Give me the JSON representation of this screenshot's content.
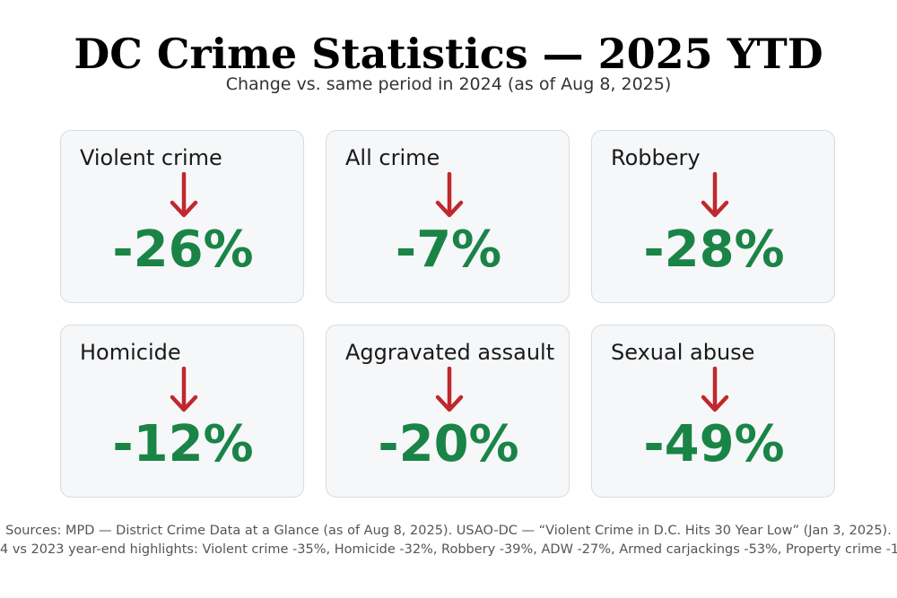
{
  "title": "DC Crime Statistics — 2025 YTD",
  "subtitle": "Change vs. same period in 2024 (as of Aug 8, 2025)",
  "colors": {
    "arrow": "#c0282d",
    "value": "#1a8447",
    "card_bg": "#f6f7f9",
    "card_border": "#d8dce0"
  },
  "icons": {
    "decrease": "down-arrow-icon"
  },
  "chart_data": {
    "type": "table",
    "unit": "%",
    "categories": [
      "Violent crime",
      "All crime",
      "Robbery",
      "Homicide",
      "Aggravated assault",
      "Sexual abuse"
    ],
    "values": [
      -26,
      -7,
      -28,
      -12,
      -20,
      -49
    ],
    "display": [
      "-26%",
      "-7%",
      "-28%",
      "-12%",
      "-20%",
      "-49%"
    ]
  },
  "footer": {
    "line1": "Sources: MPD — District Crime Data at a Glance (as of Aug 8, 2025). USAO-DC — “Violent Crime in D.C. Hits 30 Year Low” (Jan 3, 2025).",
    "line2": "4 vs 2023 year-end highlights: Violent crime -35%, Homicide -32%, Robbery -39%, ADW -27%, Armed carjackings -53%, Property crime -1"
  }
}
